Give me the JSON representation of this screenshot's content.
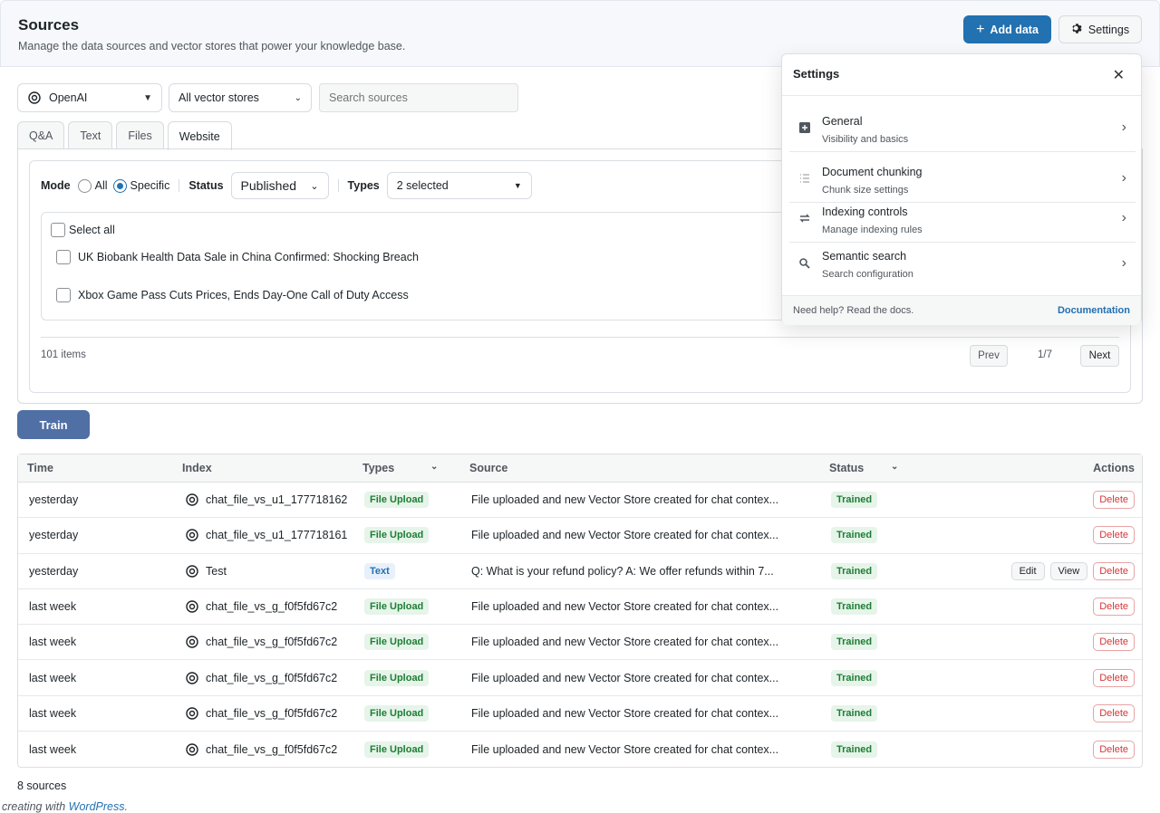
{
  "header": {
    "title": "Sources",
    "subtitle": "Manage the data sources and vector stores that power your knowledge base.",
    "add_label": "Add data",
    "settings_label": "Settings"
  },
  "filters": {
    "provider": "OpenAI",
    "vector_store": "All vector stores",
    "search_placeholder": "Search sources"
  },
  "tabs": [
    "Q&A",
    "Text",
    "Files",
    "Website"
  ],
  "active_tab": "Website",
  "panel": {
    "mode_label": "Mode",
    "mode_all": "All",
    "mode_specific": "Specific",
    "status_label": "Status",
    "status_value": "Published",
    "types_label": "Types",
    "types_value": "2 selected",
    "select_all": "Select all",
    "items": [
      "UK Biobank Health Data Sale in China Confirmed: Shocking Breach",
      "Xbox Game Pass Cuts Prices, Ends Day-One Call of Duty Access"
    ],
    "items_count": "101 items",
    "prev": "Prev",
    "page": "1/7",
    "next": "Next"
  },
  "train_label": "Train",
  "table": {
    "headers": [
      "Time",
      "Index",
      "Types",
      "Source",
      "Status",
      "Actions"
    ],
    "rows": [
      {
        "time": "yesterday",
        "index": "chat_file_vs_u1_177718162",
        "type": "File Upload",
        "source": "File uploaded and new Vector Store created for chat contex...",
        "status": "Trained"
      },
      {
        "time": "yesterday",
        "index": "chat_file_vs_u1_177718161",
        "type": "File Upload",
        "source": "File uploaded and new Vector Store created for chat contex...",
        "status": "Trained"
      },
      {
        "time": "yesterday",
        "index": "Test",
        "type": "Text",
        "source": "Q: What is your refund policy? A: We offer refunds within 7...",
        "status": "Trained"
      },
      {
        "time": "last week",
        "index": "chat_file_vs_g_f0f5fd67c2",
        "type": "File Upload",
        "source": "File uploaded and new Vector Store created for chat contex...",
        "status": "Trained"
      },
      {
        "time": "last week",
        "index": "chat_file_vs_g_f0f5fd67c2",
        "type": "File Upload",
        "source": "File uploaded and new Vector Store created for chat contex...",
        "status": "Trained"
      },
      {
        "time": "last week",
        "index": "chat_file_vs_g_f0f5fd67c2",
        "type": "File Upload",
        "source": "File uploaded and new Vector Store created for chat contex...",
        "status": "Trained"
      },
      {
        "time": "last week",
        "index": "chat_file_vs_g_f0f5fd67c2",
        "type": "File Upload",
        "source": "File uploaded and new Vector Store created for chat contex...",
        "status": "Trained"
      },
      {
        "time": "last week",
        "index": "chat_file_vs_g_f0f5fd67c2",
        "type": "File Upload",
        "source": "File uploaded and new Vector Store created for chat contex...",
        "status": "Trained"
      }
    ],
    "edit_label": "Edit",
    "view_label": "View",
    "delete_label": "Delete"
  },
  "footer": {
    "count": "8 sources",
    "wp_prefix": "creating with",
    "wp_link": "WordPress."
  },
  "settings_popup": {
    "title": "Settings",
    "items": [
      {
        "title": "General",
        "subtitle": "Visibility and basics",
        "icon": "general-icon"
      },
      {
        "title": "Document chunking",
        "subtitle": "Chunk size settings",
        "icon": "list-icon"
      },
      {
        "title": "Indexing controls",
        "subtitle": "Manage indexing rules",
        "icon": "repeat-icon"
      },
      {
        "title": "Semantic search",
        "subtitle": "Search configuration",
        "icon": "search-icon"
      }
    ],
    "help": "Need help? Read the docs.",
    "doc_link": "Documentation"
  }
}
